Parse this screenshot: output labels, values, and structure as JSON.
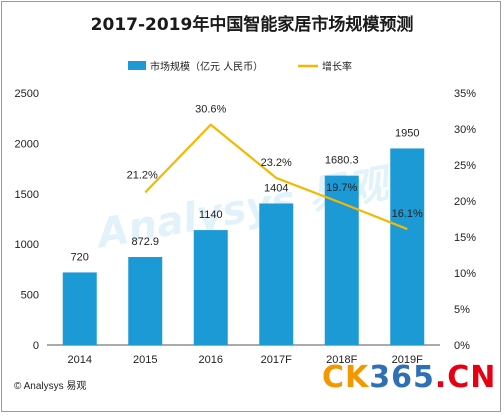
{
  "title": "2017-2019年中国智能家居市场规模预测",
  "source": "© Analysys 易观",
  "watermark": {
    "part1": "CK",
    "part2": "365",
    "part3": ".CN",
    "center": "Analysys 易观"
  },
  "colors": {
    "bar": "#1c9ad6",
    "line": "#f5b800",
    "axis_text": "#222222",
    "watermark_orange": "#f39800",
    "watermark_blue": "#2f6fb6",
    "watermark_red": "#e60012"
  },
  "chart_data": {
    "type": "bar",
    "title": "2017-2019年中国智能家居市场规模预测",
    "categories": [
      "2014",
      "2015",
      "2016",
      "2017F",
      "2018F",
      "2019F"
    ],
    "series": [
      {
        "name": "市场规模（亿元 人民币）",
        "type": "bar",
        "axis": "left",
        "values": [
          720,
          872.9,
          1140,
          1404,
          1680.3,
          1950
        ],
        "labels": [
          "720",
          "872.9",
          "1140",
          "1404",
          "1680.3",
          "1950"
        ]
      },
      {
        "name": "增长率",
        "type": "line",
        "axis": "right",
        "x": [
          "2015",
          "2016",
          "2017F",
          "2018F",
          "2019F"
        ],
        "values": [
          21.2,
          30.6,
          23.2,
          19.7,
          16.1
        ],
        "labels": [
          "21.2%",
          "30.6%",
          "23.2%",
          "19.7%",
          "16.1%"
        ]
      }
    ],
    "y_left": {
      "ylim": [
        0,
        2500
      ],
      "ticks": [
        0,
        500,
        1000,
        1500,
        2000,
        2500
      ],
      "tick_labels": [
        "0",
        "500",
        "1000",
        "1500",
        "2000",
        "2500"
      ]
    },
    "y_right": {
      "ylim": [
        0,
        35
      ],
      "ticks": [
        0,
        5,
        10,
        15,
        20,
        25,
        30,
        35
      ],
      "tick_labels": [
        "0%",
        "5%",
        "10%",
        "15%",
        "20%",
        "25%",
        "30%",
        "35%"
      ]
    },
    "grid": false,
    "legend": "top-center"
  }
}
